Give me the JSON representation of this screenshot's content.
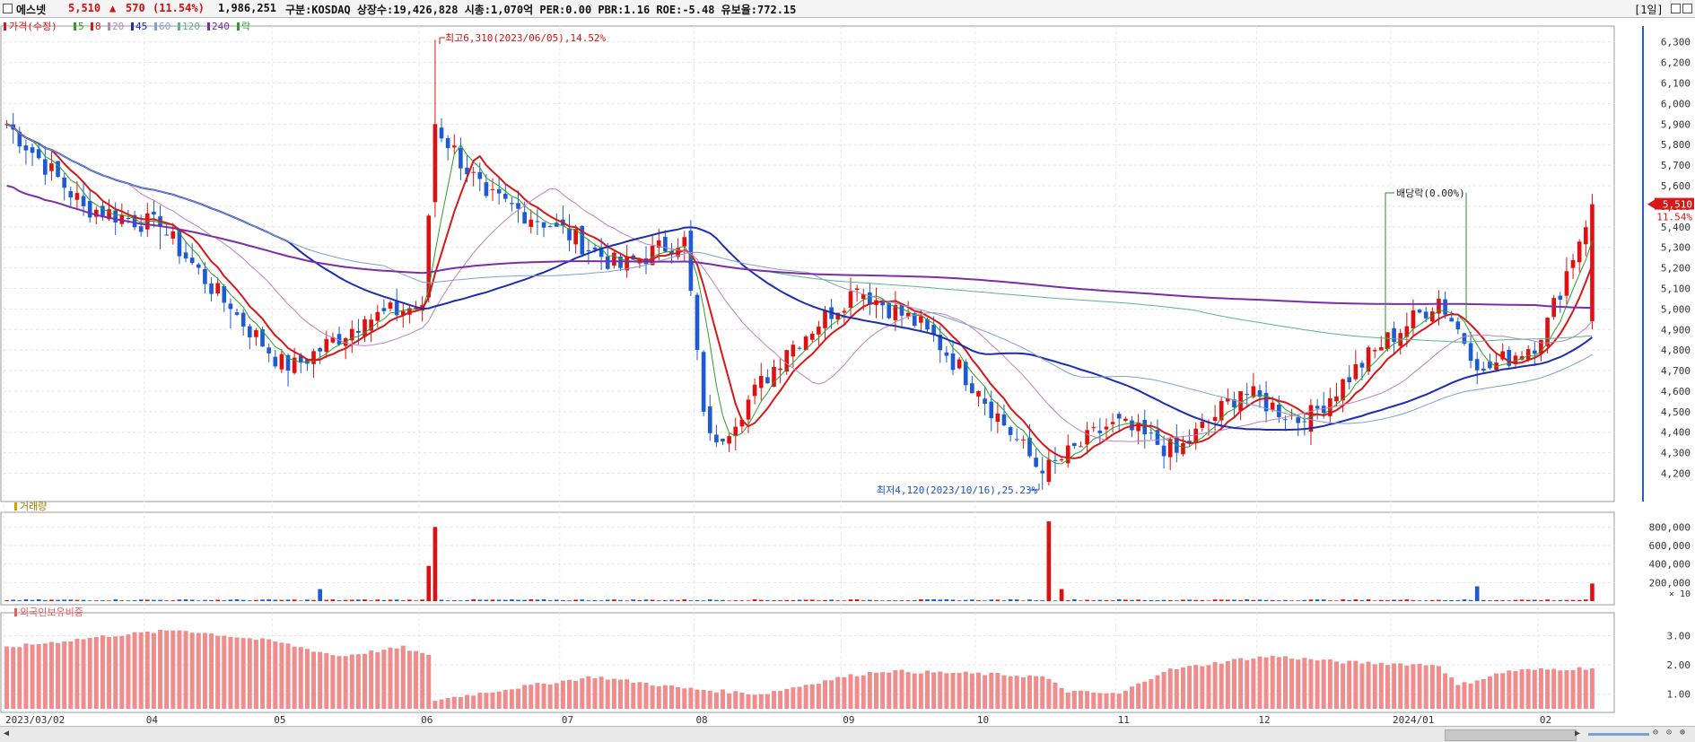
{
  "header": {
    "stock_name": "에스넷",
    "price": "5,510",
    "change_arrow": "▲",
    "change": "570",
    "change_pct": "(11.54%)",
    "volume": "1,986,251",
    "info": "구분:KOSDAQ 상장수:19,426,828 시총:1,070억 PER:0.00 PBR:1.16 ROE:-5.48 유보율:772.15",
    "period": "[1일]"
  },
  "price_panel": {
    "legend": {
      "title": "가격(수정)",
      "ma": [
        {
          "label": "5",
          "color": "#2e9e2e"
        },
        {
          "label": "8",
          "color": "#d81818"
        },
        {
          "label": "20",
          "color": "#c080c0"
        },
        {
          "label": "45",
          "color": "#1c2db4"
        },
        {
          "label": "60",
          "color": "#7fa0d0"
        },
        {
          "label": "120",
          "color": "#5ab48c"
        },
        {
          "label": "240",
          "color": "#7b2ea8"
        }
      ],
      "extra": "락"
    },
    "current_price_label": "5,510",
    "current_pct_label": "11.54%",
    "high_annotation": "최고6,310(2023/06/05),14.52%",
    "low_annotation": "최저4,120(2023/10/16),25.23%",
    "dividend_annotation": "배당락(0.00%)"
  },
  "volume_panel": {
    "title": "거래량",
    "scale_note": "× 10"
  },
  "foreign_panel": {
    "title": "외국인보유비중"
  },
  "x_axis": {
    "labels": [
      "2023/03/02",
      "04",
      "05",
      "06",
      "07",
      "08",
      "09",
      "10",
      "11",
      "12",
      "2024/01",
      "02"
    ]
  },
  "chart_data": [
    {
      "type": "candlestick",
      "title": "가격(수정)",
      "y_ticks": [
        4200,
        4300,
        4400,
        4500,
        4600,
        4700,
        4800,
        4900,
        5000,
        5100,
        5200,
        5300,
        5400,
        5500,
        5600,
        5700,
        5800,
        5900,
        6000,
        6100,
        6200,
        6300
      ],
      "ylim": [
        4080,
        6360
      ],
      "x_range": [
        "2023/03/02",
        "2024/02/13"
      ],
      "keypoints": [
        {
          "date": "2023/03/02",
          "close": 5900
        },
        {
          "date": "2023/03/20",
          "close": 5500
        },
        {
          "date": "2023/04/05",
          "close": 5400
        },
        {
          "date": "2023/04/20",
          "close": 5000
        },
        {
          "date": "2023/05/03",
          "close": 4700
        },
        {
          "date": "2023/05/20",
          "close": 4950
        },
        {
          "date": "2023/06/01",
          "close": 5020
        },
        {
          "date": "2023/06/05",
          "close": 5900,
          "high": 6310
        },
        {
          "date": "2023/06/15",
          "close": 5550
        },
        {
          "date": "2023/07/01",
          "close": 5400
        },
        {
          "date": "2023/07/14",
          "close": 5200
        },
        {
          "date": "2023/07/28",
          "close": 5350
        },
        {
          "date": "2023/08/02",
          "close": 4500
        },
        {
          "date": "2023/08/05",
          "close": 4350
        },
        {
          "date": "2023/08/20",
          "close": 4800
        },
        {
          "date": "2023/09/05",
          "close": 5100
        },
        {
          "date": "2023/09/20",
          "close": 4900
        },
        {
          "date": "2023/10/02",
          "close": 4600
        },
        {
          "date": "2023/10/16",
          "close": 4200,
          "low": 4120
        },
        {
          "date": "2023/10/31",
          "close": 4450
        },
        {
          "date": "2023/11/14",
          "close": 4300
        },
        {
          "date": "2023/11/28",
          "close": 4600
        },
        {
          "date": "2023/12/12",
          "close": 4450
        },
        {
          "date": "2023/12/27",
          "close": 4800
        },
        {
          "date": "2024/01/10",
          "close": 5050
        },
        {
          "date": "2024/01/20",
          "close": 4700
        },
        {
          "date": "2024/02/01",
          "close": 4850
        },
        {
          "date": "2024/02/13",
          "close": 5510
        }
      ],
      "moving_averages": [
        {
          "name": "5",
          "color": "#2e9e2e"
        },
        {
          "name": "8",
          "color": "#d81818"
        },
        {
          "name": "20",
          "color": "#c080c0"
        },
        {
          "name": "45",
          "color": "#1c2db4"
        },
        {
          "name": "60",
          "color": "#7fa0d0"
        },
        {
          "name": "120",
          "color": "#5ab48c"
        },
        {
          "name": "240",
          "color": "#7b2ea8"
        }
      ],
      "up_color": "#e01010",
      "down_color": "#1e5ad2"
    },
    {
      "type": "bar",
      "title": "거래량",
      "y_ticks": [
        200000,
        400000,
        600000,
        800000
      ],
      "ylim": [
        0,
        900000
      ],
      "spikes": [
        {
          "date": "2023/06/02",
          "value": 380000
        },
        {
          "date": "2023/06/05",
          "value": 800000
        },
        {
          "date": "2023/05/10",
          "value": 130000
        },
        {
          "date": "2023/10/17",
          "value": 860000
        },
        {
          "date": "2023/10/19",
          "value": 130000
        },
        {
          "date": "2024/01/18",
          "value": 160000
        },
        {
          "date": "2024/02/13",
          "value": 190000
        }
      ]
    },
    {
      "type": "bar",
      "title": "외국인보유비중",
      "y_ticks": [
        1.0,
        2.0,
        3.0
      ],
      "ylim": [
        0.5,
        3.6
      ],
      "keypoints": [
        {
          "date": "2023/03/02",
          "value": 2.6
        },
        {
          "date": "2023/03/25",
          "value": 3.0
        },
        {
          "date": "2023/04/10",
          "value": 3.2
        },
        {
          "date": "2023/05/01",
          "value": 2.8
        },
        {
          "date": "2023/05/15",
          "value": 2.3
        },
        {
          "date": "2023/05/28",
          "value": 2.6
        },
        {
          "date": "2023/06/02",
          "value": 2.3
        },
        {
          "date": "2023/06/05",
          "value": 0.8
        },
        {
          "date": "2023/06/25",
          "value": 1.3
        },
        {
          "date": "2023/07/10",
          "value": 1.6
        },
        {
          "date": "2023/07/28",
          "value": 1.2
        },
        {
          "date": "2023/08/15",
          "value": 1.0
        },
        {
          "date": "2023/09/01",
          "value": 1.6
        },
        {
          "date": "2023/09/10",
          "value": 1.8
        },
        {
          "date": "2023/10/01",
          "value": 1.7
        },
        {
          "date": "2023/10/16",
          "value": 1.6
        },
        {
          "date": "2023/10/20",
          "value": 1.1
        },
        {
          "date": "2023/11/01",
          "value": 1.0
        },
        {
          "date": "2023/11/10",
          "value": 1.8
        },
        {
          "date": "2023/11/28",
          "value": 2.2
        },
        {
          "date": "2023/12/05",
          "value": 2.3
        },
        {
          "date": "2023/12/20",
          "value": 2.1
        },
        {
          "date": "2024/01/10",
          "value": 2.0
        },
        {
          "date": "2024/01/15",
          "value": 1.3
        },
        {
          "date": "2024/01/25",
          "value": 1.8
        },
        {
          "date": "2024/02/13",
          "value": 1.9
        }
      ],
      "color": "#f08c8c"
    }
  ]
}
